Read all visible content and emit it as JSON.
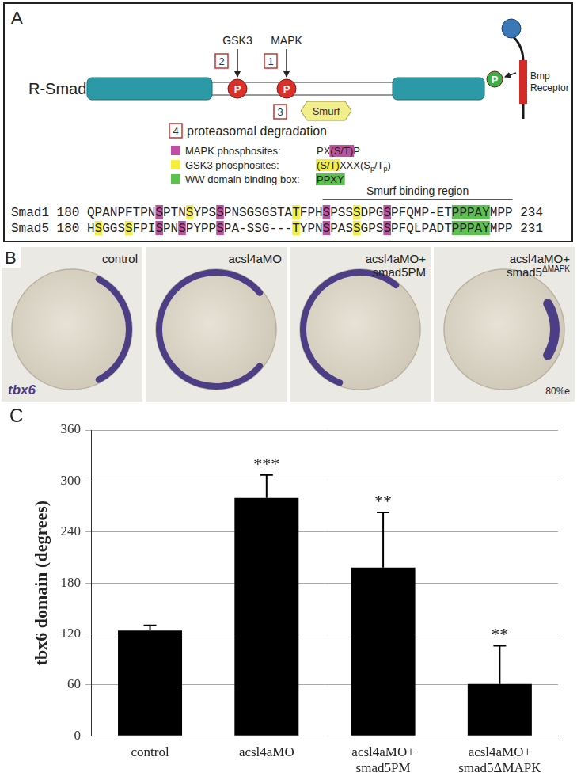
{
  "panel_a": {
    "label": "A",
    "protein": "R-Smad",
    "phospho": "P",
    "kinases": [
      {
        "name": "GSK3",
        "step": "2"
      },
      {
        "name": "MAPK",
        "step": "1"
      }
    ],
    "smurf": {
      "name": "Smurf",
      "step": "3"
    },
    "degradation": {
      "step": "4",
      "text": "proteasomal degradation"
    },
    "receptor": [
      "Bmp",
      "Receptor"
    ],
    "key_items": [
      {
        "label": "MAPK phosphosites:",
        "color": "#c0509f",
        "pattern": [
          {
            "text": "PX"
          },
          {
            "text": "(S/T)",
            "highlight": true
          },
          {
            "text": "P"
          }
        ]
      },
      {
        "label": "GSK3 phosphosites:",
        "color": "#f4ef3c",
        "pattern": [
          {
            "text": "(S/T)",
            "highlight": true
          },
          {
            "text": "XXX(S"
          },
          {
            "text": "p",
            "sub": true
          },
          {
            "text": "/T"
          },
          {
            "text": "p",
            "sub": true
          },
          {
            "text": ")"
          }
        ]
      },
      {
        "label": "WW domain binding box:",
        "color": "#5cc24e",
        "pattern": [
          {
            "text": "PPXY",
            "highlight": true
          }
        ]
      }
    ],
    "alignment": {
      "region_label": "Smurf binding region",
      "region": [
        31,
        55
      ],
      "rows": [
        {
          "name": "Smad1",
          "start": "180",
          "end": "234",
          "sequence": "QPANPFTPNSPTNSYPSSPNSGSGSTATFPHSPSSSDPGSPFQMP-ETPPPAYMPP",
          "mapk_sites": [
            9,
            17,
            31,
            39
          ],
          "gsk3_sites": [
            13,
            27,
            35
          ],
          "ww_box": [
            48,
            52
          ]
        },
        {
          "name": "Smad5",
          "start": "180",
          "end": "231",
          "sequence": "HSGGSSFPISPNSPYPPSPA-SSG---TYPNSPASSGPSSPFQLPADTPPPAYMPP",
          "mapk_sites": [
            9,
            12,
            17,
            31,
            39
          ],
          "gsk3_sites": [
            1,
            5,
            27,
            35
          ],
          "ww_box": [
            48,
            52
          ]
        }
      ]
    }
  },
  "panel_b": {
    "label": "B",
    "stain": "tbx6",
    "stage": "80%e",
    "images": [
      {
        "lines": [
          "control"
        ]
      },
      {
        "lines": [
          "acsl4aMO"
        ]
      },
      {
        "lines": [
          "acsl4aMO+",
          "smad5PM"
        ]
      },
      {
        "lines": [
          "acsl4aMO+",
          "smad5"
        ],
        "sup": "ΔMAPK"
      }
    ]
  },
  "chart_data": {
    "type": "bar",
    "panel_label": "C",
    "y_label": "tbx6 domain (degrees)",
    "categories": [
      [
        "control"
      ],
      [
        "acsl4aMO"
      ],
      [
        "acsl4aMO+",
        "smad5PM"
      ],
      [
        "acsl4aMO+",
        "smad5ΔMAPK"
      ]
    ],
    "values": [
      124,
      280,
      198,
      61
    ],
    "errors": [
      6,
      27,
      65,
      45
    ],
    "annotations": [
      null,
      "***",
      "**",
      "**"
    ],
    "color": "#000000",
    "ylim": [
      0,
      360
    ],
    "yticks": [
      0,
      60,
      120,
      180,
      240,
      300,
      360
    ],
    "grid": true
  }
}
